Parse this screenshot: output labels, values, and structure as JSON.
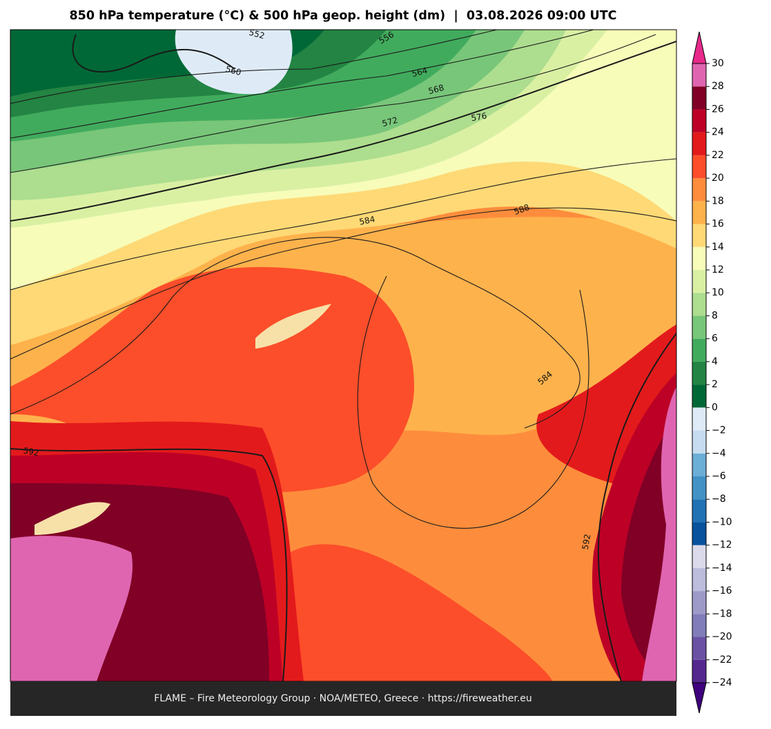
{
  "title": "850 hPa temperature (°C) & 500 hPa geop. height (dm)  |  03.08.2026 09:00 UTC",
  "footer": "FLAME – Fire Meteorology Group · NOA/METEO, Greece · https://fireweather.eu",
  "contour_labels": [
    552,
    556,
    560,
    564,
    568,
    572,
    576,
    584,
    588,
    592,
    584,
    592
  ],
  "colorbar": {
    "ticks": [
      {
        "value": -24,
        "label": "−24"
      },
      {
        "value": -22,
        "label": "−22"
      },
      {
        "value": -20,
        "label": "−20"
      },
      {
        "value": -18,
        "label": "−18"
      },
      {
        "value": -16,
        "label": "−16"
      },
      {
        "value": -14,
        "label": "−14"
      },
      {
        "value": -12,
        "label": "−12"
      },
      {
        "value": -10,
        "label": "−10"
      },
      {
        "value": -8,
        "label": "−8"
      },
      {
        "value": -6,
        "label": "−6"
      },
      {
        "value": -4,
        "label": "−4"
      },
      {
        "value": -2,
        "label": "−2"
      },
      0,
      2,
      4,
      6,
      8,
      10,
      12,
      14,
      16,
      18,
      20,
      22,
      24,
      26,
      28,
      30
    ],
    "colors": [
      "#54278f",
      "#6a51a3",
      "#807dba",
      "#9e9ac8",
      "#bcbddc",
      "#dadaeb",
      "#08519c",
      "#2171b5",
      "#4292c6",
      "#6baed6",
      "#c6dbef",
      "#deebf7",
      "#006837",
      "#238443",
      "#41ab5d",
      "#78c679",
      "#addd8e",
      "#d9f0a3",
      "#f7fcb9",
      "#fed976",
      "#feb24c",
      "#fd8d3c",
      "#fc4e2a",
      "#e31a1c",
      "#bd0026",
      "#800026",
      "#df65b0"
    ],
    "extend_colors": {
      "under": "#3f007d",
      "over": "#e7298a"
    }
  }
}
